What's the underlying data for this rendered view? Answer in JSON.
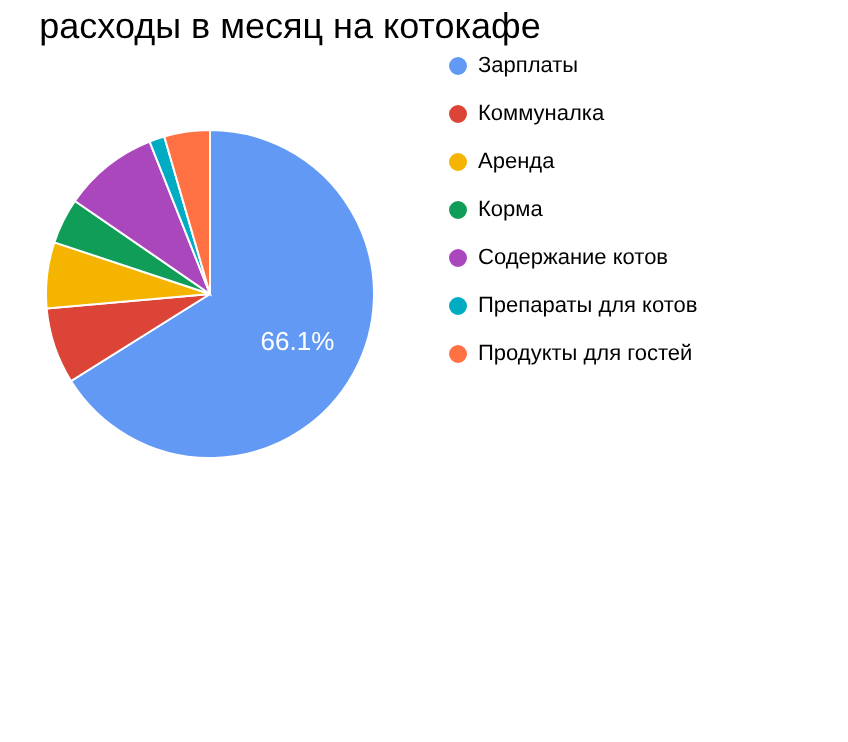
{
  "chart_data": {
    "type": "pie",
    "title": "расходы в месяц на котокафе",
    "categories": [
      "Зарплаты",
      "Коммуналка",
      "Аренда",
      "Корма",
      "Содержание котов",
      "Препараты для котов",
      "Продукты для гостей"
    ],
    "values": [
      66.1,
      7.5,
      6.5,
      4.5,
      9.4,
      1.5,
      4.5
    ],
    "colors": [
      "#6199f5",
      "#db4437",
      "#f4b400",
      "#0f9d58",
      "#ab47bc",
      "#00acc1",
      "#ff7043"
    ],
    "value_labels": [
      "66.1%",
      null,
      null,
      null,
      null,
      null,
      null
    ],
    "legend": "top right"
  }
}
